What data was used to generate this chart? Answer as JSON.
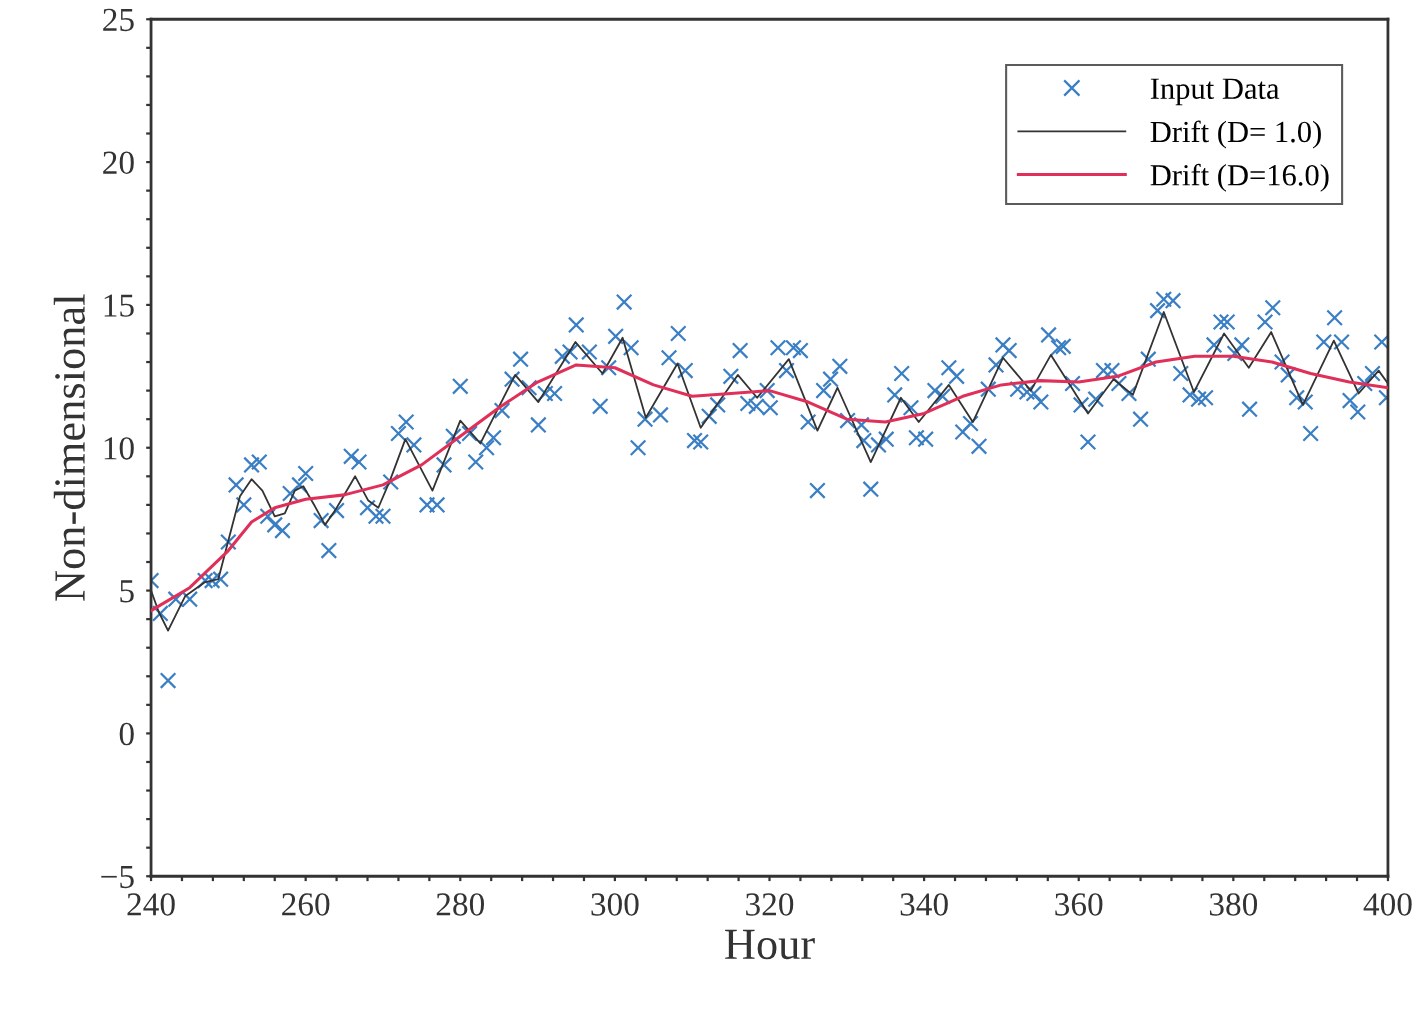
{
  "chart_data": {
    "type": "scatter",
    "xlabel": "Hour",
    "ylabel": "Non-dimensional",
    "xlim": [
      240,
      400
    ],
    "ylim": [
      -5,
      25
    ],
    "xticks": [
      240,
      {
        "value": 244,
        "label": null
      },
      {
        "value": 248,
        "label": null
      },
      {
        "value": 252,
        "label": null
      },
      {
        "value": 256,
        "label": null
      },
      260,
      {
        "value": 264,
        "label": null
      },
      {
        "value": 268,
        "label": null
      },
      {
        "value": 272,
        "label": null
      },
      {
        "value": 276,
        "label": null
      },
      280,
      {
        "value": 284,
        "label": null
      },
      {
        "value": 288,
        "label": null
      },
      {
        "value": 292,
        "label": null
      },
      {
        "value": 296,
        "label": null
      },
      300,
      {
        "value": 304,
        "label": null
      },
      {
        "value": 308,
        "label": null
      },
      {
        "value": 312,
        "label": null
      },
      {
        "value": 316,
        "label": null
      },
      320,
      {
        "value": 324,
        "label": null
      },
      {
        "value": 328,
        "label": null
      },
      {
        "value": 332,
        "label": null
      },
      {
        "value": 336,
        "label": null
      },
      340,
      {
        "value": 344,
        "label": null
      },
      {
        "value": 348,
        "label": null
      },
      {
        "value": 352,
        "label": null
      },
      {
        "value": 356,
        "label": null
      },
      360,
      {
        "value": 364,
        "label": null
      },
      {
        "value": 368,
        "label": null
      },
      {
        "value": 372,
        "label": null
      },
      {
        "value": 376,
        "label": null
      },
      380,
      {
        "value": 384,
        "label": null
      },
      {
        "value": 388,
        "label": null
      },
      {
        "value": 392,
        "label": null
      },
      {
        "value": 396,
        "label": null
      },
      400
    ],
    "yticks": [
      {
        "value": -5,
        "label": "−5"
      },
      {
        "value": -4,
        "label": null
      },
      {
        "value": -3,
        "label": null
      },
      {
        "value": -2,
        "label": null
      },
      {
        "value": -1,
        "label": null
      },
      0,
      {
        "value": 1,
        "label": null
      },
      {
        "value": 2,
        "label": null
      },
      {
        "value": 3,
        "label": null
      },
      {
        "value": 4,
        "label": null
      },
      5,
      {
        "value": 6,
        "label": null
      },
      {
        "value": 7,
        "label": null
      },
      {
        "value": 8,
        "label": null
      },
      {
        "value": 9,
        "label": null
      },
      10,
      {
        "value": 11,
        "label": null
      },
      {
        "value": 12,
        "label": null
      },
      {
        "value": 13,
        "label": null
      },
      {
        "value": 14,
        "label": null
      },
      15,
      {
        "value": 16,
        "label": null
      },
      {
        "value": 17,
        "label": null
      },
      {
        "value": 18,
        "label": null
      },
      {
        "value": 19,
        "label": null
      },
      20,
      {
        "value": 21,
        "label": null
      },
      {
        "value": 22,
        "label": null
      },
      {
        "value": 23,
        "label": null
      },
      {
        "value": 24,
        "label": null
      },
      25
    ],
    "grid": false,
    "legend": "top right",
    "series": [
      {
        "name": "Input Data",
        "marker": "cross",
        "color": "#3a7fc4",
        "x": [
          240,
          241.2,
          242.2,
          243.2,
          245,
          247,
          247.9,
          249,
          250,
          251,
          252,
          253,
          254,
          255.1,
          256,
          257,
          258,
          259.2,
          260,
          262,
          263,
          264,
          265.9,
          266.9,
          268,
          269.1,
          270,
          271,
          272,
          273,
          274,
          275.7,
          277,
          277.9,
          279.1,
          280,
          281.2,
          282,
          283.4,
          284.3,
          285.4,
          286.7,
          287.8,
          288.9,
          290.1,
          291,
          292.2,
          293.2,
          294.2,
          295,
          296.7,
          298.1,
          299.2,
          300.1,
          301.2,
          302.1,
          303,
          303.9,
          305.9,
          307,
          308.2,
          309.1,
          310.3,
          311.1,
          312.2,
          313.3,
          315,
          316.2,
          317.2,
          318.3,
          319.7,
          320.1,
          321.1,
          322.2,
          323.1,
          324,
          325,
          326.2,
          327,
          327.9,
          329.1,
          330.1,
          331.9,
          332.2,
          333.1,
          334.1,
          335.1,
          336.2,
          337.1,
          338.3,
          339,
          340.2,
          341.4,
          342.4,
          343.2,
          344.2,
          345,
          346,
          347.1,
          348.3,
          349.3,
          350.2,
          351,
          352.1,
          353.3,
          354.2,
          355.1,
          356.1,
          357.4,
          358,
          359.2,
          360.3,
          361.2,
          362.2,
          363.2,
          364.3,
          365.2,
          366.5,
          368,
          369,
          370.2,
          371,
          372.2,
          373.2,
          374.4,
          375.5,
          376.4,
          377.5,
          378.4,
          379.2,
          380.2,
          381.1,
          382.1,
          384.1,
          385.1,
          386.3,
          387.1,
          388.2,
          389.3,
          390,
          391.7,
          393.1,
          394,
          395.1,
          396.1,
          397,
          398,
          399.2,
          399.8
        ],
        "values": [
          5.35,
          4.2,
          1.85,
          4.7,
          4.7,
          5.35,
          5.35,
          5.4,
          6.7,
          8.7,
          8.0,
          9.4,
          9.5,
          7.6,
          7.3,
          7.1,
          8.4,
          8.7,
          9.1,
          7.45,
          6.4,
          7.8,
          9.7,
          9.5,
          7.9,
          7.6,
          7.6,
          8.8,
          10.5,
          10.9,
          10.1,
          8.0,
          8.0,
          9.4,
          10.4,
          12.15,
          10.5,
          9.5,
          10.0,
          10.35,
          11.3,
          12.4,
          13.1,
          12.1,
          10.8,
          11.9,
          11.9,
          13.2,
          13.35,
          14.3,
          13.35,
          11.45,
          12.8,
          13.9,
          15.1,
          13.5,
          10.0,
          11.0,
          11.15,
          13.15,
          14.0,
          12.7,
          10.25,
          10.2,
          11.1,
          11.5,
          12.5,
          13.4,
          11.55,
          11.45,
          12.0,
          11.4,
          13.5,
          12.7,
          13.5,
          13.4,
          10.9,
          8.5,
          12.0,
          12.4,
          12.85,
          10.95,
          10.8,
          10.25,
          8.55,
          10.1,
          10.3,
          11.85,
          12.6,
          11.4,
          10.35,
          10.3,
          12.0,
          11.8,
          12.8,
          12.5,
          10.55,
          10.85,
          10.05,
          12.05,
          12.9,
          13.6,
          13.4,
          12.05,
          11.95,
          11.9,
          11.6,
          13.95,
          13.5,
          13.55,
          12.25,
          11.5,
          10.2,
          11.7,
          12.7,
          12.7,
          12.25,
          11.9,
          11.0,
          13.1,
          14.8,
          15.2,
          15.15,
          12.6,
          11.85,
          11.7,
          11.75,
          13.6,
          14.4,
          14.4,
          13.3,
          13.6,
          11.35,
          14.4,
          14.9,
          13.0,
          12.55,
          11.75,
          11.6,
          10.5,
          13.7,
          14.55,
          13.7,
          11.65,
          11.25,
          12.25,
          12.6,
          13.7,
          11.75
        ]
      },
      {
        "name": "Drift (D= 1.0)",
        "type": "line",
        "color": "#333333",
        "x": [
          240,
          241,
          242.2,
          244.4,
          247,
          248.7,
          250,
          251.5,
          253,
          254.4,
          256,
          257.3,
          258.6,
          259.7,
          261.2,
          262.5,
          263.8,
          266.4,
          268.1,
          269.4,
          270.9,
          272.9,
          276.4,
          280,
          282.6,
          287.1,
          290.1,
          294.9,
          298.4,
          301,
          304,
          308.1,
          311.1,
          315.9,
          318.4,
          322.5,
          326.2,
          328.8,
          333.1,
          337,
          339.3,
          343.2,
          346.3,
          350.2,
          353.8,
          356.4,
          361.2,
          364.5,
          367,
          371,
          374.9,
          378.8,
          382,
          384.9,
          389,
          393,
          396.2,
          398.8,
          400
        ],
        "values": [
          5.0,
          4.25,
          3.6,
          4.8,
          5.3,
          5.4,
          6.75,
          8.3,
          8.9,
          8.5,
          7.6,
          7.7,
          8.5,
          8.65,
          7.95,
          7.3,
          7.8,
          9.0,
          8.15,
          7.9,
          8.85,
          10.3,
          8.5,
          10.95,
          10.15,
          12.55,
          11.6,
          13.7,
          12.6,
          13.85,
          11.05,
          12.95,
          10.7,
          12.55,
          11.75,
          13.1,
          10.6,
          12.1,
          9.5,
          11.75,
          10.9,
          12.2,
          10.9,
          13.15,
          12.0,
          13.25,
          11.2,
          12.4,
          11.85,
          14.75,
          11.95,
          14.0,
          12.8,
          14.05,
          11.5,
          13.75,
          11.9,
          12.7,
          12.25
        ]
      },
      {
        "name": "Drift (D=16.0)",
        "type": "line",
        "color": "#e0305a",
        "x": [
          240,
          245,
          250,
          253,
          256,
          260,
          265,
          270,
          275,
          280,
          285,
          290,
          295,
          300,
          305,
          310,
          315,
          320,
          325,
          330,
          335,
          340,
          345,
          350,
          355,
          360,
          365,
          370,
          375,
          380,
          385,
          390,
          395,
          400
        ],
        "values": [
          4.3,
          5.1,
          6.4,
          7.4,
          7.9,
          8.2,
          8.35,
          8.7,
          9.4,
          10.4,
          11.4,
          12.3,
          12.9,
          12.8,
          12.2,
          11.8,
          11.9,
          12.0,
          11.6,
          11.0,
          10.9,
          11.2,
          11.8,
          12.2,
          12.35,
          12.3,
          12.5,
          13.0,
          13.2,
          13.2,
          13.0,
          12.6,
          12.3,
          12.1
        ]
      }
    ]
  }
}
